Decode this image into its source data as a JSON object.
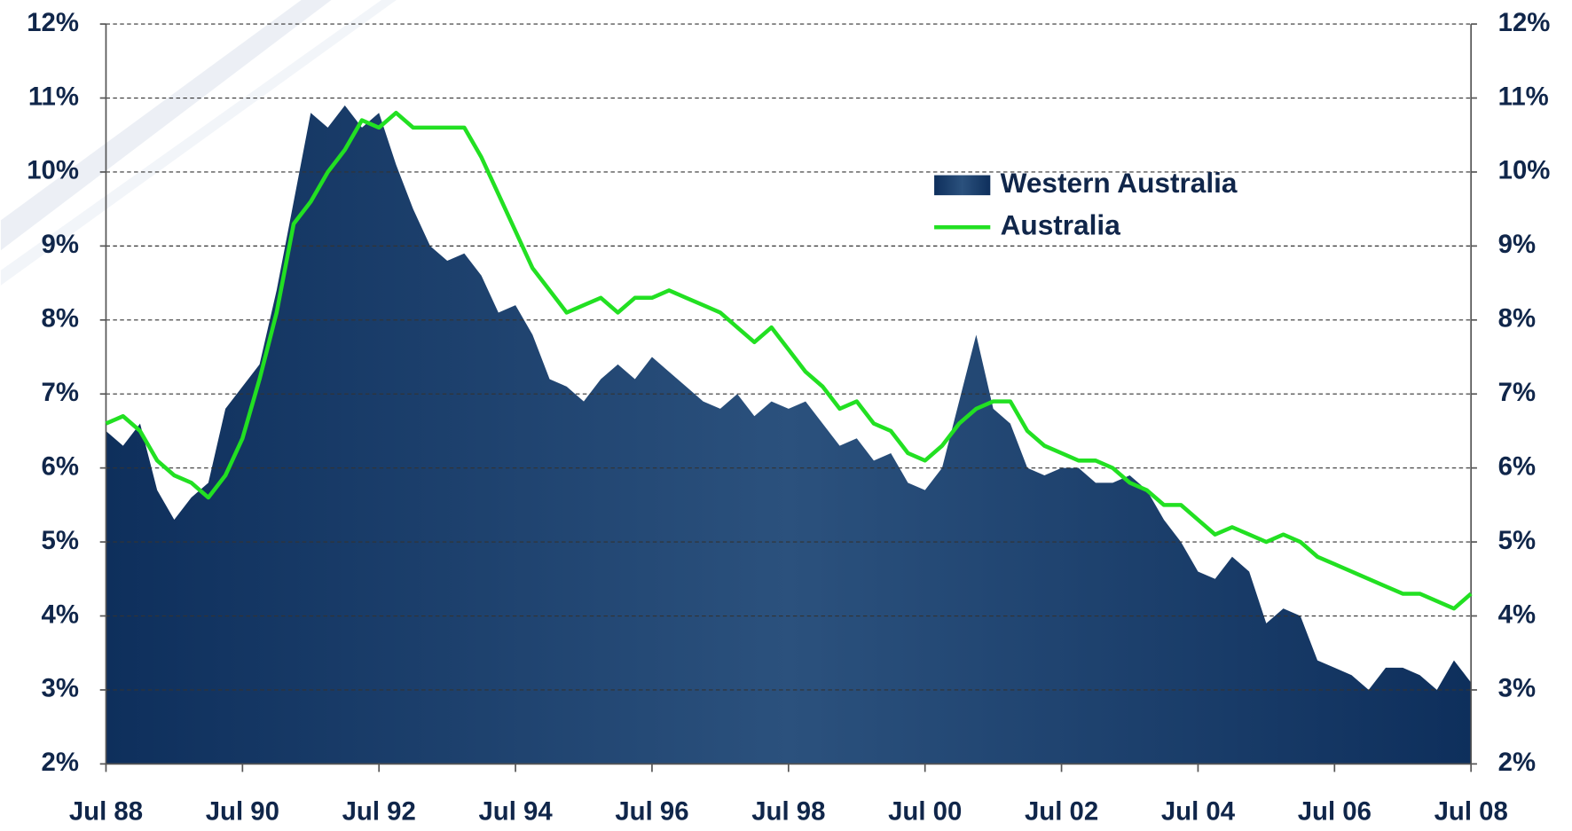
{
  "chart_data": {
    "type": "area-line",
    "x": [
      1988.5,
      1988.75,
      1989,
      1989.25,
      1989.5,
      1989.75,
      1990,
      1990.25,
      1990.5,
      1990.75,
      1991,
      1991.25,
      1991.5,
      1991.75,
      1992,
      1992.25,
      1992.5,
      1992.75,
      1993,
      1993.25,
      1993.5,
      1993.75,
      1994,
      1994.25,
      1994.5,
      1994.75,
      1995,
      1995.25,
      1995.5,
      1995.75,
      1996,
      1996.25,
      1996.5,
      1996.75,
      1997,
      1997.25,
      1997.5,
      1997.75,
      1998,
      1998.25,
      1998.5,
      1998.75,
      1999,
      1999.25,
      1999.5,
      1999.75,
      2000,
      2000.25,
      2000.5,
      2000.75,
      2001,
      2001.25,
      2001.5,
      2001.75,
      2002,
      2002.25,
      2002.5,
      2002.75,
      2003,
      2003.25,
      2003.5,
      2003.75,
      2004,
      2004.25,
      2004.5,
      2004.75,
      2005,
      2005.25,
      2005.5,
      2005.75,
      2006,
      2006.25,
      2006.5,
      2006.75,
      2007,
      2007.25,
      2007.5,
      2007.75,
      2008,
      2008.25,
      2008.5
    ],
    "series": [
      {
        "name": "Western Australia",
        "color": "#0e2f5c",
        "kind": "area",
        "values": [
          6.5,
          6.3,
          6.6,
          5.7,
          5.3,
          5.6,
          5.8,
          6.8,
          7.1,
          7.4,
          8.4,
          9.6,
          10.8,
          10.6,
          10.9,
          10.6,
          10.8,
          10.1,
          9.5,
          9.0,
          8.8,
          8.9,
          8.6,
          8.1,
          8.2,
          7.8,
          7.2,
          7.1,
          6.9,
          7.2,
          7.4,
          7.2,
          7.5,
          7.3,
          7.1,
          6.9,
          6.8,
          7.0,
          6.7,
          6.9,
          6.8,
          6.9,
          6.6,
          6.3,
          6.4,
          6.1,
          6.2,
          5.8,
          5.7,
          6.0,
          6.9,
          7.8,
          6.8,
          6.6,
          6.0,
          5.9,
          6.0,
          6.0,
          5.8,
          5.8,
          5.9,
          5.7,
          5.3,
          5.0,
          4.6,
          4.5,
          4.8,
          4.6,
          3.9,
          4.1,
          4.0,
          3.4,
          3.3,
          3.2,
          3.0,
          3.3,
          3.3,
          3.2,
          3.0,
          3.4,
          3.1
        ]
      },
      {
        "name": "Australia",
        "color": "#22e022",
        "kind": "line",
        "values": [
          6.6,
          6.7,
          6.5,
          6.1,
          5.9,
          5.8,
          5.6,
          5.9,
          6.4,
          7.2,
          8.1,
          9.3,
          9.6,
          10.0,
          10.3,
          10.7,
          10.6,
          10.8,
          10.6,
          10.6,
          10.6,
          10.6,
          10.2,
          9.7,
          9.2,
          8.7,
          8.4,
          8.1,
          8.2,
          8.3,
          8.1,
          8.3,
          8.3,
          8.4,
          8.3,
          8.2,
          8.1,
          7.9,
          7.7,
          7.9,
          7.6,
          7.3,
          7.1,
          6.8,
          6.9,
          6.6,
          6.5,
          6.2,
          6.1,
          6.3,
          6.6,
          6.8,
          6.9,
          6.9,
          6.5,
          6.3,
          6.2,
          6.1,
          6.1,
          6.0,
          5.8,
          5.7,
          5.5,
          5.5,
          5.3,
          5.1,
          5.2,
          5.1,
          5.0,
          5.1,
          5.0,
          4.8,
          4.7,
          4.6,
          4.5,
          4.4,
          4.3,
          4.3,
          4.2,
          4.1,
          4.3
        ]
      }
    ],
    "xlim": [
      1988.5,
      2008.5
    ],
    "xticks": [
      {
        "value": 1988.5,
        "label": "Jul 88"
      },
      {
        "value": 1990.5,
        "label": "Jul 90"
      },
      {
        "value": 1992.5,
        "label": "Jul 92"
      },
      {
        "value": 1994.5,
        "label": "Jul 94"
      },
      {
        "value": 1996.5,
        "label": "Jul 96"
      },
      {
        "value": 1998.5,
        "label": "Jul 98"
      },
      {
        "value": 2000.5,
        "label": "Jul 00"
      },
      {
        "value": 2002.5,
        "label": "Jul 02"
      },
      {
        "value": 2004.5,
        "label": "Jul 04"
      },
      {
        "value": 2006.5,
        "label": "Jul 06"
      },
      {
        "value": 2008.5,
        "label": "Jul 08"
      }
    ],
    "ylim": [
      2,
      12
    ],
    "yticks": [
      {
        "value": 2,
        "label": "2%"
      },
      {
        "value": 3,
        "label": "3%"
      },
      {
        "value": 4,
        "label": "4%"
      },
      {
        "value": 5,
        "label": "5%"
      },
      {
        "value": 6,
        "label": "6%"
      },
      {
        "value": 7,
        "label": "7%"
      },
      {
        "value": 8,
        "label": "8%"
      },
      {
        "value": 9,
        "label": "9%"
      },
      {
        "value": 10,
        "label": "10%"
      },
      {
        "value": 11,
        "label": "11%"
      },
      {
        "value": 12,
        "label": "12%"
      }
    ],
    "y2lim": [
      2,
      12
    ],
    "y2ticks": [
      {
        "value": 2,
        "label": "2%"
      },
      {
        "value": 3,
        "label": "3%"
      },
      {
        "value": 4,
        "label": "4%"
      },
      {
        "value": 5,
        "label": "5%"
      },
      {
        "value": 6,
        "label": "6%"
      },
      {
        "value": 7,
        "label": "7%"
      },
      {
        "value": 8,
        "label": "8%"
      },
      {
        "value": 9,
        "label": "9%"
      },
      {
        "value": 10,
        "label": "10%"
      },
      {
        "value": 11,
        "label": "11%"
      },
      {
        "value": 12,
        "label": "12%"
      }
    ],
    "grid": true
  }
}
